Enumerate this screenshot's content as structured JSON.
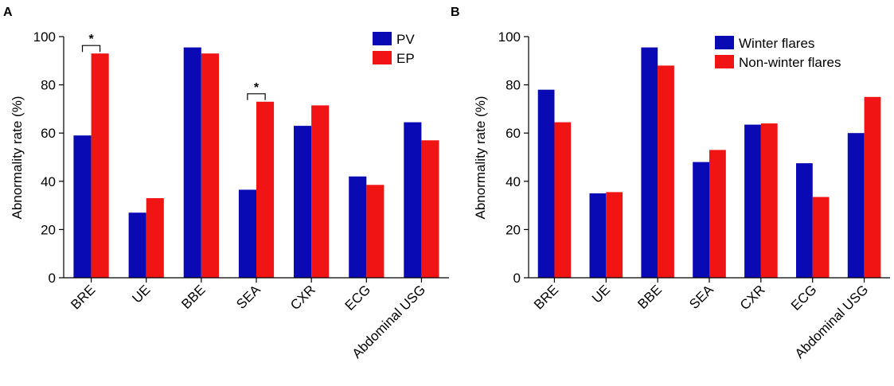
{
  "chart_data": [
    {
      "panel": "A",
      "type": "bar",
      "categories": [
        "BRE",
        "UE",
        "BBE",
        "SEA",
        "CXR",
        "ECG",
        "Abdominal USG"
      ],
      "series": [
        {
          "name": "PV",
          "color": "#0a0ab4",
          "values": [
            59,
            27,
            95.5,
            36.5,
            63,
            42,
            64.5
          ]
        },
        {
          "name": "EP",
          "color": "#f01414",
          "values": [
            93,
            33,
            93,
            73,
            71.5,
            38.5,
            57
          ]
        }
      ],
      "ylabel": "Abnormality rate (%)",
      "ylim": [
        0,
        100
      ],
      "yticks": [
        0,
        20,
        40,
        60,
        80,
        100
      ],
      "legend_position": "top-right",
      "grid": false,
      "annotations": [
        {
          "category_index": 0,
          "text": "*"
        },
        {
          "category_index": 3,
          "text": "*"
        }
      ]
    },
    {
      "panel": "B",
      "type": "bar",
      "categories": [
        "BRE",
        "UE",
        "BBE",
        "SEA",
        "CXR",
        "ECG",
        "Abdominal USG"
      ],
      "series": [
        {
          "name": "Winter flares",
          "color": "#0a0ab4",
          "values": [
            78,
            35,
            95.5,
            48,
            63.5,
            47.5,
            60
          ]
        },
        {
          "name": "Non-winter flares",
          "color": "#f01414",
          "values": [
            64.5,
            35.5,
            88,
            53,
            64,
            33.5,
            75
          ]
        }
      ],
      "ylabel": "Abnormality rate (%)",
      "ylim": [
        0,
        100
      ],
      "yticks": [
        0,
        20,
        40,
        60,
        80,
        100
      ],
      "legend_position": "top-right",
      "grid": false,
      "annotations": []
    }
  ]
}
